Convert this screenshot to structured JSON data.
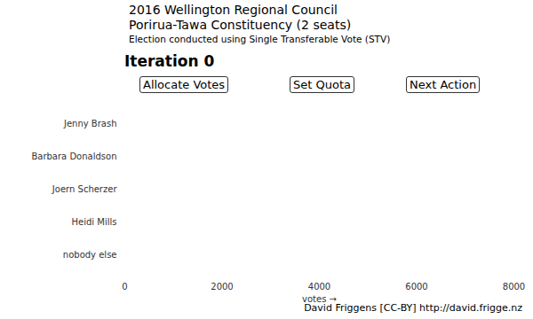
{
  "chart_data": {
    "type": "bar",
    "orientation": "horizontal",
    "title": [
      "2016 Wellington Regional Council",
      "Porirua-Tawa Constituency (2 seats)"
    ],
    "subtitle": "Election conducted using Single Transferable Vote (STV)",
    "iteration_label": "Iteration 0",
    "annotations": [
      "Allocate Votes",
      "Set Quota",
      "Next Action"
    ],
    "caption": "David Friggens [CC-BY] http://david.frigge.nz",
    "categories": [
      "Jenny Brash",
      "Barbara Donaldson",
      "Joern Scherzer",
      "Heidi Mills",
      "nobody else"
    ],
    "values": [
      0,
      0,
      0,
      0,
      0
    ],
    "color": "#4682b4",
    "xlabel": "votes",
    "xlim": [
      0,
      8000
    ],
    "xticks": [
      0,
      2000,
      4000,
      6000,
      8000
    ],
    "grid": false
  }
}
